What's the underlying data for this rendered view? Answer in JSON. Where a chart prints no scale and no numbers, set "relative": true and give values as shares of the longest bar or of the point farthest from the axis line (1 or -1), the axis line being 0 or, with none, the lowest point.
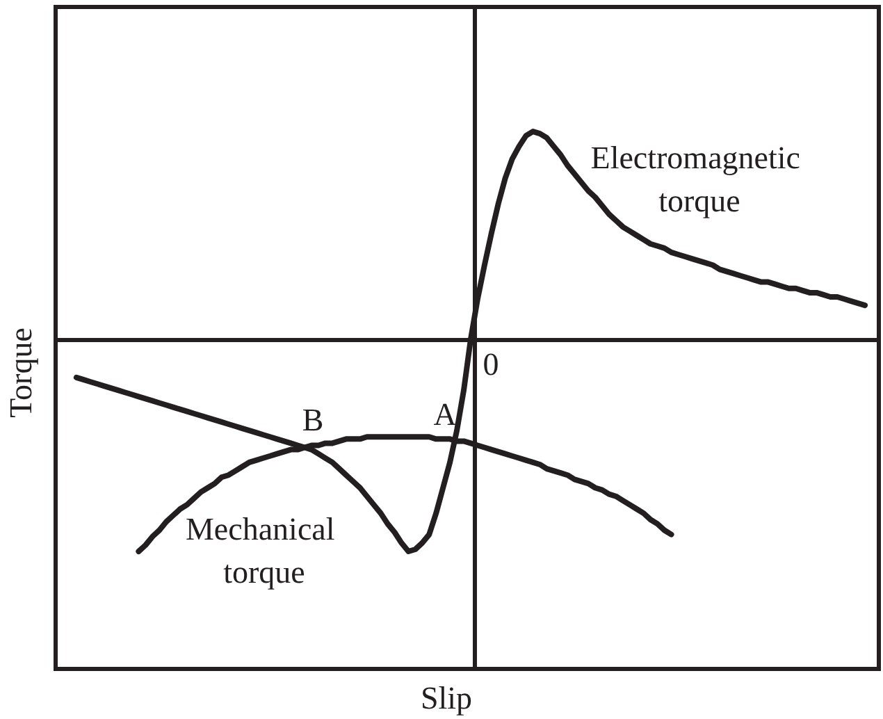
{
  "chart_data": {
    "type": "line",
    "xlabel": "Slip",
    "ylabel": "Torque",
    "relative": true,
    "marker": "none",
    "line_style": "solid",
    "categories": [
      null,
      null,
      null,
      null,
      null,
      null,
      null,
      null,
      null,
      null,
      null,
      null,
      null,
      null,
      null,
      null,
      null,
      null,
      null,
      null,
      null,
      null,
      null,
      null,
      null,
      null,
      null,
      null,
      null,
      null,
      null,
      null,
      null,
      null,
      null,
      null,
      null,
      null,
      null,
      null,
      null,
      null,
      null,
      null,
      null,
      null,
      null,
      null,
      null,
      null,
      null,
      null,
      null,
      null,
      null,
      null,
      null,
      null,
      null,
      null,
      null,
      null,
      null,
      null,
      null,
      null,
      null,
      null,
      null,
      null,
      null,
      null,
      null,
      null,
      null,
      null,
      null,
      null,
      null,
      null,
      null,
      null,
      null,
      null,
      null,
      null,
      null,
      null,
      null,
      null,
      null,
      null,
      null,
      null,
      null,
      null,
      null,
      null,
      null,
      null,
      null,
      null,
      null,
      null,
      null,
      null,
      null,
      null,
      null,
      null,
      null,
      null,
      null,
      null,
      null,
      null,
      null,
      null,
      null,
      null
    ],
    "series": [
      {
        "name": "Electromagnetic torque",
        "color": "#231f20",
        "values": [
          null,
          null,
          null,
          -0.18,
          -0.19,
          -0.2,
          -0.21,
          -0.22,
          -0.23,
          -0.24,
          -0.25,
          -0.26,
          -0.27,
          -0.28,
          -0.29,
          -0.3,
          -0.31,
          -0.32,
          -0.33,
          -0.34,
          -0.35,
          -0.36,
          -0.37,
          -0.38,
          -0.39,
          -0.4,
          -0.41,
          -0.42,
          -0.43,
          -0.44,
          -0.45,
          -0.46,
          -0.47,
          -0.48,
          -0.49,
          -0.5,
          -0.51,
          -0.52,
          -0.54,
          -0.56,
          -0.58,
          -0.61,
          -0.64,
          -0.67,
          -0.7,
          -0.74,
          -0.78,
          -0.82,
          -0.87,
          -0.91,
          -0.96,
          -1,
          -0.99,
          -0.96,
          -0.92,
          -0.82,
          -0.7,
          -0.58,
          -0.43,
          -0.24,
          0,
          0.19,
          0.35,
          0.5,
          0.64,
          0.76,
          0.85,
          0.91,
          0.96,
          0.98,
          0.97,
          0.95,
          0.91,
          0.87,
          0.82,
          0.78,
          0.74,
          0.7,
          0.67,
          0.63,
          0.59,
          0.56,
          0.53,
          0.51,
          0.49,
          0.47,
          0.45,
          0.44,
          0.43,
          0.41,
          0.4,
          0.39,
          0.38,
          0.37,
          0.36,
          0.35,
          0.33,
          0.32,
          0.31,
          0.3,
          0.29,
          0.28,
          0.27,
          0.27,
          0.26,
          0.25,
          0.24,
          0.24,
          0.23,
          0.22,
          0.22,
          0.21,
          0.2,
          0.2,
          0.19,
          0.18,
          0.17,
          0.16,
          null,
          null
        ]
      },
      {
        "name": "Mechanical torque",
        "color": "#231f20",
        "values": [
          null,
          null,
          null,
          null,
          null,
          null,
          null,
          null,
          null,
          null,
          null,
          null,
          -1,
          -0.97,
          -0.93,
          -0.9,
          -0.86,
          -0.83,
          -0.8,
          -0.78,
          -0.75,
          -0.72,
          -0.7,
          -0.68,
          -0.65,
          -0.64,
          -0.62,
          -0.6,
          -0.58,
          -0.57,
          -0.56,
          -0.55,
          -0.54,
          -0.53,
          -0.52,
          -0.52,
          -0.51,
          -0.5,
          -0.5,
          -0.49,
          -0.49,
          -0.48,
          -0.47,
          -0.47,
          -0.47,
          -0.46,
          -0.46,
          -0.46,
          -0.46,
          -0.46,
          -0.46,
          -0.46,
          -0.46,
          -0.46,
          -0.46,
          -0.47,
          -0.47,
          -0.47,
          -0.48,
          -0.48,
          -0.49,
          -0.5,
          -0.51,
          -0.52,
          -0.53,
          -0.54,
          -0.55,
          -0.56,
          -0.57,
          -0.58,
          -0.59,
          -0.61,
          -0.62,
          -0.63,
          -0.64,
          -0.66,
          -0.67,
          -0.68,
          -0.7,
          -0.71,
          -0.73,
          -0.74,
          -0.76,
          -0.78,
          -0.8,
          -0.82,
          -0.85,
          -0.87,
          -0.9,
          -0.92,
          null,
          null,
          null,
          null,
          null,
          null,
          null,
          null,
          null,
          null,
          null,
          null,
          null,
          null,
          null,
          null,
          null,
          null,
          null,
          null,
          null,
          null,
          null,
          null,
          null,
          null,
          null,
          null,
          null,
          null
        ]
      }
    ],
    "annotations": [
      {
        "text": "B",
        "y": -0.5
      },
      {
        "text": "A",
        "y": -0.48
      },
      "0"
    ]
  }
}
